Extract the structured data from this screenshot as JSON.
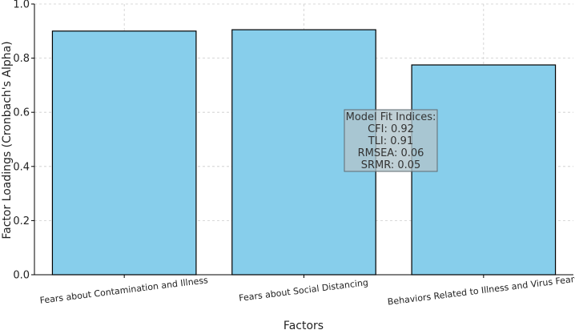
{
  "chart_data": {
    "type": "bar",
    "categories": [
      "Fears about Contamination and Illness",
      "Fears about Social Distancing",
      "Behaviors Related to Illness and Virus Fears"
    ],
    "values": [
      0.9,
      0.905,
      0.775
    ],
    "xlabel": "Factors",
    "ylabel": "Factor Loadings (Cronbach's Alpha)",
    "ylim": [
      0,
      1.0
    ],
    "yticks": [
      "0.0",
      "0.2",
      "0.4",
      "0.6",
      "0.8",
      "1.0"
    ],
    "grid": true,
    "bar_color": "#87CEEB",
    "bar_edge_color": "#000000",
    "annotation": {
      "lines": [
        "Model Fit Indices:",
        "CFI: 0.92",
        "TLI: 0.91",
        "RMSEA: 0.06",
        "SRMR: 0.05"
      ],
      "box_color": "#b0c4cc"
    }
  }
}
